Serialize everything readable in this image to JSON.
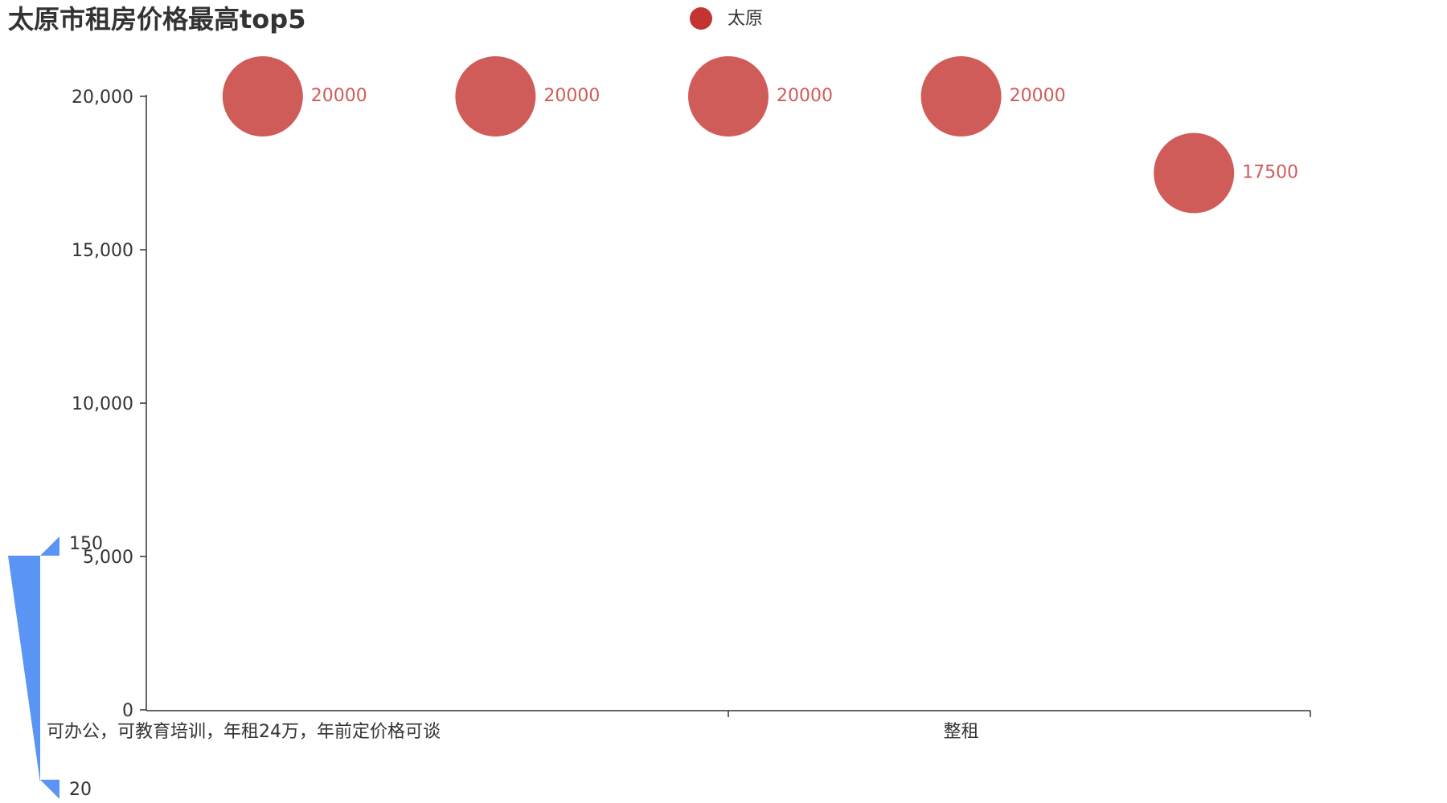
{
  "chart_data": {
    "type": "scatter",
    "title": "太原市租房价格最高top5",
    "legend": {
      "entries": [
        "太原"
      ],
      "placement": "top-center"
    },
    "x_tick_labels": [
      "可办公，可教育培训，年租24万，年前定价格可谈",
      "整租"
    ],
    "series": [
      {
        "name": "太原",
        "color": "#d05c5a",
        "legend_color": "#c23531",
        "points": [
          {
            "x": 1,
            "y": 20000,
            "label": "20000"
          },
          {
            "x": 2,
            "y": 20000,
            "label": "20000"
          },
          {
            "x": 3,
            "y": 20000,
            "label": "20000"
          },
          {
            "x": 4,
            "y": 20000,
            "label": "20000"
          },
          {
            "x": 5,
            "y": 17500,
            "label": "17500"
          }
        ]
      }
    ],
    "x_range": [
      0.5,
      5.5
    ],
    "y_range": [
      0,
      20000
    ],
    "y_ticks": [
      {
        "value": 0,
        "label": "0"
      },
      {
        "value": 5000,
        "label": "5,000"
      },
      {
        "value": 10000,
        "label": "10,000"
      },
      {
        "value": 15000,
        "label": "15,000"
      },
      {
        "value": 20000,
        "label": "20,000"
      }
    ],
    "grid": false,
    "visual_map": {
      "max_label": "150",
      "min_label": "20",
      "color": "#5a95f5"
    }
  }
}
